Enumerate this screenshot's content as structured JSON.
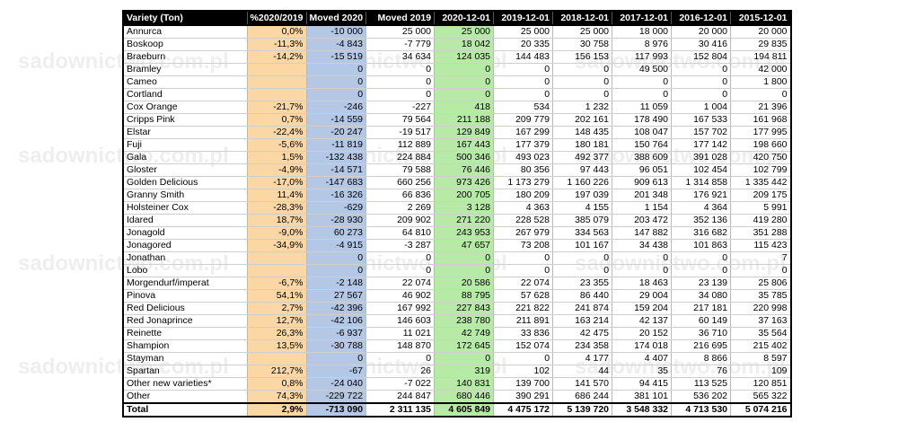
{
  "table": {
    "headers": [
      "Variety (Ton)",
      "%2020/2019",
      "Moved 2020",
      "Moved 2019",
      "2020-12-01",
      "2019-12-01",
      "2018-12-01",
      "2017-12-01",
      "2016-12-01",
      "2015-12-01"
    ],
    "rows": [
      [
        "Annurca",
        "0,0%",
        "-10 000",
        "25 000",
        "25 000",
        "25 000",
        "25 000",
        "18 000",
        "20 000",
        "20 000"
      ],
      [
        "Boskoop",
        "-11,3%",
        "-4 843",
        "-7 779",
        "18 042",
        "20 335",
        "30 758",
        "8 976",
        "30 416",
        "29 835"
      ],
      [
        "Braeburn",
        "-14,2%",
        "-15 519",
        "34 634",
        "124 035",
        "144 483",
        "156 153",
        "117 993",
        "152 804",
        "194 811"
      ],
      [
        "Bramley",
        "",
        "0",
        "0",
        "0",
        "0",
        "0",
        "49 500",
        "0",
        "42 000"
      ],
      [
        "Cameo",
        "",
        "0",
        "0",
        "0",
        "0",
        "0",
        "0",
        "0",
        "1 800"
      ],
      [
        "Cortland",
        "",
        "0",
        "0",
        "0",
        "0",
        "0",
        "0",
        "0",
        "0"
      ],
      [
        "Cox Orange",
        "-21,7%",
        "-246",
        "-227",
        "418",
        "534",
        "1 232",
        "11 059",
        "1 004",
        "21 396"
      ],
      [
        "Cripps Pink",
        "0,7%",
        "-14 559",
        "79 564",
        "211 188",
        "209 779",
        "202 161",
        "178 490",
        "167 533",
        "161 968"
      ],
      [
        "Elstar",
        "-22,4%",
        "-20 247",
        "-19 517",
        "129 849",
        "167 299",
        "148 435",
        "108 047",
        "157 702",
        "177 995"
      ],
      [
        "Fuji",
        "-5,6%",
        "-11 819",
        "112 889",
        "167 443",
        "177 379",
        "180 181",
        "150 764",
        "177 142",
        "198 660"
      ],
      [
        "Gala",
        "1,5%",
        "-132 438",
        "224 884",
        "500 346",
        "493 023",
        "492 377",
        "388 609",
        "391 028",
        "420 750"
      ],
      [
        "Gloster",
        "-4,9%",
        "-14 571",
        "79 588",
        "76 446",
        "80 356",
        "97 443",
        "96 051",
        "102 454",
        "102 799"
      ],
      [
        "Golden Delicious",
        "-17,0%",
        "-147 683",
        "660 256",
        "973 426",
        "1 173 279",
        "1 160 226",
        "909 613",
        "1 314 858",
        "1 335 442"
      ],
      [
        "Granny Smith",
        "11,4%",
        "-16 326",
        "66 836",
        "200 705",
        "180 209",
        "197 039",
        "201 348",
        "176 921",
        "209 175"
      ],
      [
        "Holsteiner Cox",
        "-28,3%",
        "-629",
        "2 269",
        "3 128",
        "4 363",
        "4 155",
        "1 154",
        "4 364",
        "5 991"
      ],
      [
        "Idared",
        "18,7%",
        "-28 930",
        "209 902",
        "271 220",
        "228 528",
        "385 079",
        "203 472",
        "352 136",
        "419 280"
      ],
      [
        "Jonagold",
        "-9,0%",
        "60 273",
        "64 810",
        "243 953",
        "267 979",
        "334 563",
        "147 882",
        "316 682",
        "351 288"
      ],
      [
        "Jonagored",
        "-34,9%",
        "-4 915",
        "-3 287",
        "47 657",
        "73 208",
        "101 167",
        "34 438",
        "101 863",
        "115 423"
      ],
      [
        "Jonathan",
        "",
        "0",
        "0",
        "0",
        "0",
        "0",
        "0",
        "0",
        "7"
      ],
      [
        "Lobo",
        "",
        "0",
        "0",
        "0",
        "0",
        "0",
        "0",
        "0",
        "0"
      ],
      [
        "Morgendurf/imperat",
        "-6,7%",
        "-2 148",
        "22 074",
        "20 586",
        "22 074",
        "23 355",
        "18 463",
        "23 139",
        "25 806"
      ],
      [
        "Pinova",
        "54,1%",
        "27 567",
        "46 902",
        "88 795",
        "57 628",
        "86 440",
        "29 004",
        "34 080",
        "35 785"
      ],
      [
        "Red Delicious",
        "2,7%",
        "-42 396",
        "167 992",
        "227 843",
        "221 822",
        "241 874",
        "159 204",
        "217 181",
        "220 998"
      ],
      [
        "Red Jonaprince",
        "12,7%",
        "-42 106",
        "146 603",
        "238 780",
        "211 891",
        "163 214",
        "42 137",
        "60 149",
        "37 163"
      ],
      [
        "Reinette",
        "26,3%",
        "-6 937",
        "11 021",
        "42 749",
        "33 836",
        "42 475",
        "20 152",
        "36 710",
        "35 564"
      ],
      [
        "Shampion",
        "13,5%",
        "-30 788",
        "148 870",
        "172 645",
        "152 074",
        "234 358",
        "174 018",
        "216 695",
        "215 402"
      ],
      [
        "Stayman",
        "",
        "0",
        "0",
        "0",
        "0",
        "4 177",
        "4 407",
        "8 866",
        "8 597"
      ],
      [
        "Spartan",
        "212,7%",
        "-67",
        "26",
        "319",
        "102",
        "44",
        "35",
        "76",
        "109"
      ],
      [
        "Other new varieties*",
        "0,8%",
        "-24 040",
        "-7 022",
        "140 831",
        "139 700",
        "141 570",
        "94 415",
        "113 525",
        "120 851"
      ],
      [
        "Other",
        "74,3%",
        "-229 722",
        "244 847",
        "680 446",
        "390 291",
        "686 244",
        "381 101",
        "536 202",
        "565 322"
      ]
    ],
    "total": [
      "Total",
      "2,9%",
      "-713 090",
      "2 311 135",
      "4 605 849",
      "4 475 172",
      "5 139 720",
      "3 548 332",
      "4 713 530",
      "5 074 216"
    ]
  },
  "watermark": "sadownictwo.com.pl",
  "colors": {
    "pct_column": "#fbd7a5",
    "moved2020_column": "#b4c7e4",
    "current_column": "#b7eaa7",
    "header_bg": "#000000"
  }
}
